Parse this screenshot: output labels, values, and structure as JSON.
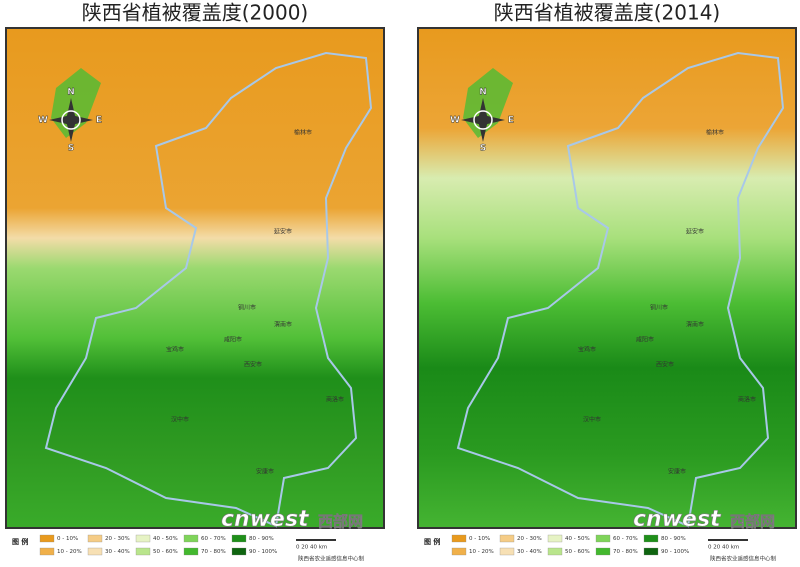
{
  "panels": [
    {
      "title": "陕西省植被覆盖度(2000)",
      "compass": {
        "n": "N",
        "s": "S",
        "e": "E",
        "w": "W"
      },
      "cities": [
        "榆林市",
        "延安市",
        "铜川市",
        "渭南市",
        "咸阳市",
        "宝鸡市",
        "西安市",
        "汉中市",
        "商洛市",
        "安康市"
      ],
      "legend": {
        "title": "图 例",
        "items": [
          {
            "label": "0 - 10%",
            "color": "#e89a1e"
          },
          {
            "label": "10 - 20%",
            "color": "#f0b04a"
          },
          {
            "label": "20 - 30%",
            "color": "#f5cc86"
          },
          {
            "label": "30 - 40%",
            "color": "#f7e0b4"
          },
          {
            "label": "40 - 50%",
            "color": "#e6f3c4"
          },
          {
            "label": "50 - 60%",
            "color": "#b9e58c"
          },
          {
            "label": "60 - 70%",
            "color": "#7fd45a"
          },
          {
            "label": "70 - 80%",
            "color": "#43b82e"
          },
          {
            "label": "80 - 90%",
            "color": "#1f8f1a"
          },
          {
            "label": "90 - 100%",
            "color": "#0f6410"
          }
        ]
      },
      "scale": "0  20  40 km",
      "credit": "陕西省农业遥感信息中心制",
      "watermark": {
        "brand": "cnwest",
        "site": "西部网"
      }
    },
    {
      "title": "陕西省植被覆盖度(2014)",
      "compass": {
        "n": "N",
        "s": "S",
        "e": "E",
        "w": "W"
      },
      "cities": [
        "榆林市",
        "延安市",
        "铜川市",
        "渭南市",
        "咸阳市",
        "宝鸡市",
        "西安市",
        "汉中市",
        "商洛市",
        "安康市"
      ],
      "legend": {
        "title": "图 例",
        "items": [
          {
            "label": "0 - 10%",
            "color": "#e89a1e"
          },
          {
            "label": "10 - 20%",
            "color": "#f0b04a"
          },
          {
            "label": "20 - 30%",
            "color": "#f5cc86"
          },
          {
            "label": "30 - 40%",
            "color": "#f7e0b4"
          },
          {
            "label": "40 - 50%",
            "color": "#e6f3c4"
          },
          {
            "label": "50 - 60%",
            "color": "#b9e58c"
          },
          {
            "label": "60 - 70%",
            "color": "#7fd45a"
          },
          {
            "label": "70 - 80%",
            "color": "#43b82e"
          },
          {
            "label": "80 - 90%",
            "color": "#1f8f1a"
          },
          {
            "label": "90 - 100%",
            "color": "#0f6410"
          }
        ]
      },
      "scale": "0  20  40 km",
      "credit": "陕西省农业遥感信息中心制",
      "watermark": {
        "brand": "cnwest",
        "site": "西部网"
      }
    }
  ]
}
